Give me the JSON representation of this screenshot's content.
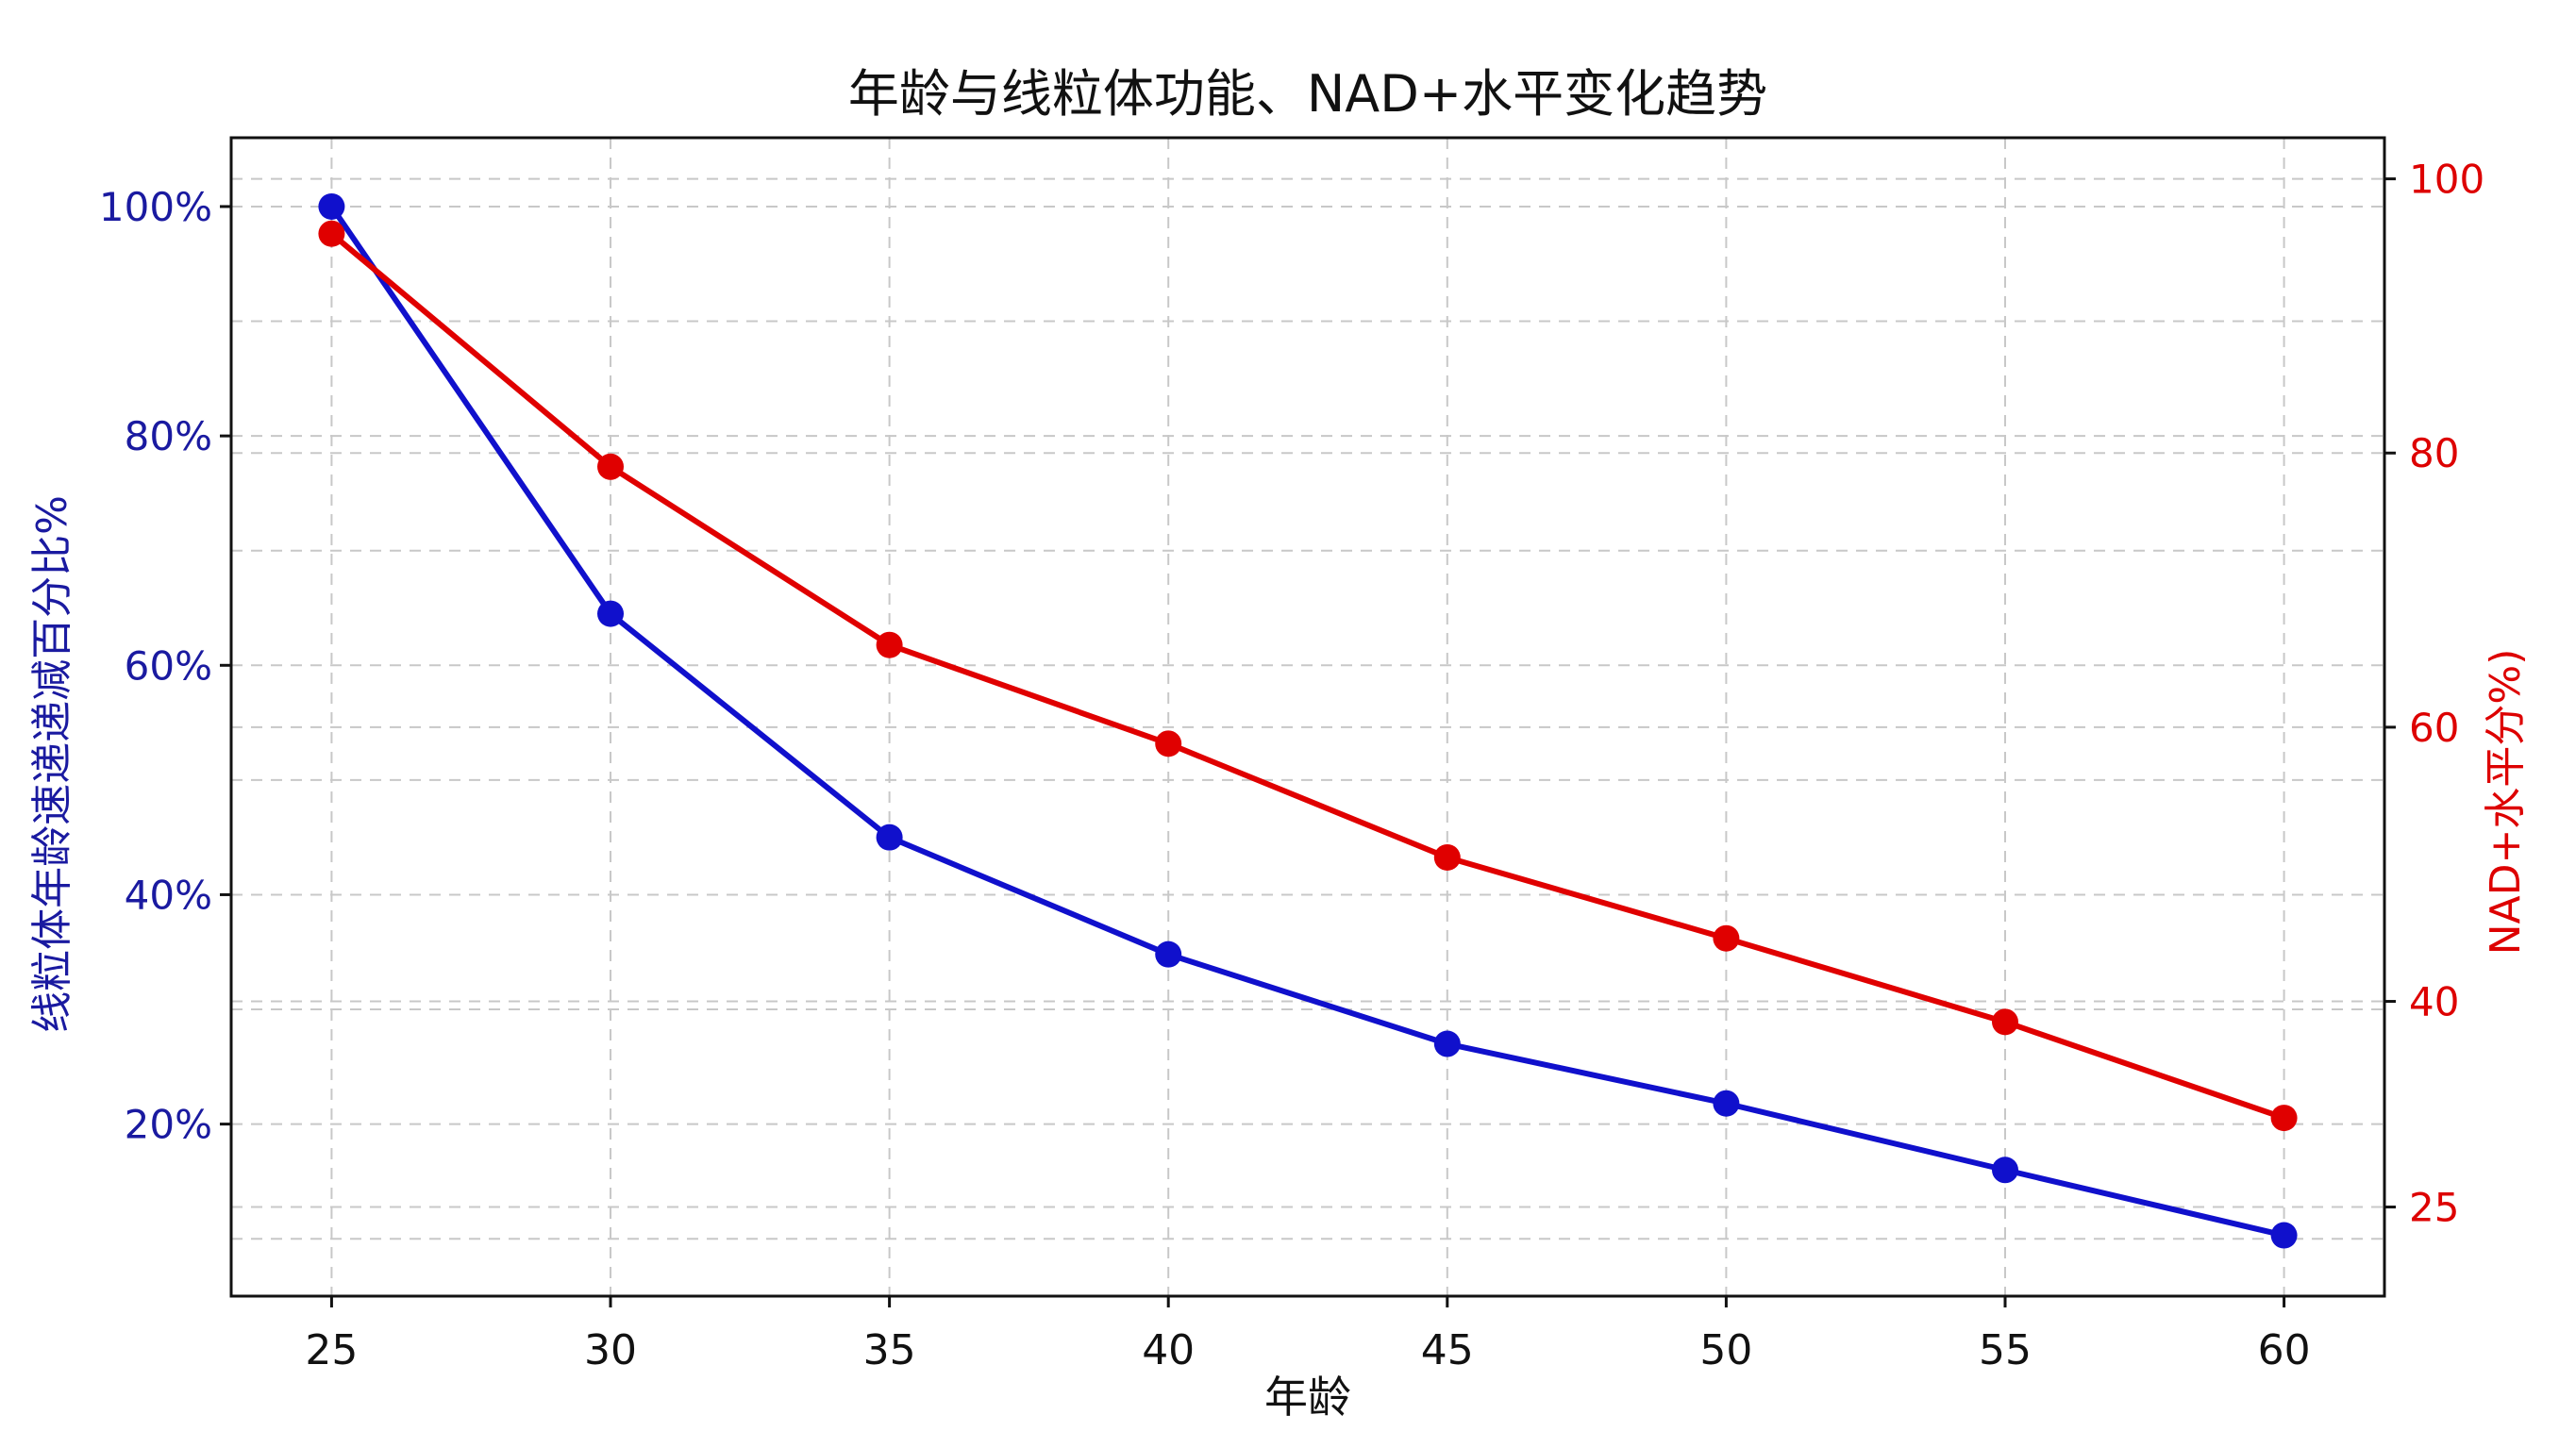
{
  "chart_data": {
    "type": "line",
    "title": "年龄与线粒体功能、NAD+水平变化趋势",
    "xlabel": "年龄",
    "ylabel_left": "线粒体年龄速递递减百分比%",
    "ylabel_right": "NAD+水平分%)",
    "x": [
      25,
      30,
      35,
      40,
      45,
      50,
      55,
      60
    ],
    "x_ticks": [
      "25",
      "30",
      "35",
      "40",
      "45",
      "50",
      "55",
      "60"
    ],
    "xlim": [
      23.2,
      61.8
    ],
    "y_left": {
      "lim": [
        5,
        106
      ],
      "ticks": [
        20,
        40,
        60,
        80,
        100
      ],
      "tick_labels": [
        "20%",
        "40%",
        "60%",
        "80%",
        "100%"
      ],
      "minor_grid": [
        10,
        30,
        50,
        70,
        90
      ]
    },
    "y_right": {
      "lim": [
        18.5,
        103
      ],
      "ticks": [
        25,
        40,
        60,
        80,
        100
      ],
      "tick_labels": [
        "25",
        "40",
        "60",
        "80",
        "100"
      ],
      "minor_grid": [
        20,
        50,
        70,
        90
      ]
    },
    "series": [
      {
        "axis": "left",
        "color": "#1010cc",
        "values": [
          100,
          64.5,
          45,
          34.8,
          27,
          21.8,
          16,
          10.3
        ]
      },
      {
        "axis": "right",
        "color": "#e00000",
        "values": [
          96,
          79,
          66,
          58.8,
          50.5,
          44.6,
          38.5,
          31.5
        ]
      }
    ],
    "grid": true,
    "grid_style": "dashed"
  }
}
